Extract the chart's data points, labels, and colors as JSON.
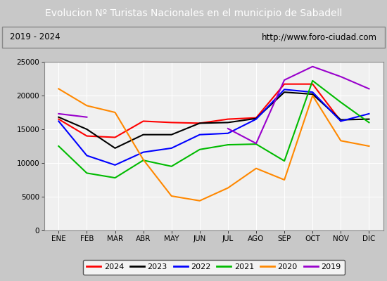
{
  "title": "Evolucion Nº Turistas Nacionales en el municipio de Sabadell",
  "subtitle_left": "2019 - 2024",
  "subtitle_right": "http://www.foro-ciudad.com",
  "title_bg_color": "#4d7ebf",
  "title_text_color": "#ffffff",
  "subtitle_bg_color": "#e8e8e8",
  "plot_bg_color": "#f0f0f0",
  "months": [
    "ENE",
    "FEB",
    "MAR",
    "ABR",
    "MAY",
    "JUN",
    "JUL",
    "AGO",
    "SEP",
    "OCT",
    "NOV",
    "DIC"
  ],
  "ylim": [
    0,
    25000
  ],
  "yticks": [
    0,
    5000,
    10000,
    15000,
    20000,
    25000
  ],
  "series": {
    "2024": {
      "color": "#ff0000",
      "data": [
        16500,
        14000,
        13800,
        16200,
        16000,
        15900,
        16500,
        16700,
        21700,
        21700,
        16200,
        null
      ]
    },
    "2023": {
      "color": "#000000",
      "data": [
        16800,
        15000,
        12200,
        14200,
        14200,
        15900,
        16000,
        16600,
        20500,
        20200,
        16400,
        16500
      ]
    },
    "2022": {
      "color": "#0000ff",
      "data": [
        16200,
        11100,
        9700,
        11600,
        12200,
        14200,
        14400,
        16500,
        20900,
        20500,
        16200,
        17300
      ]
    },
    "2021": {
      "color": "#00bb00",
      "data": [
        12500,
        8500,
        7800,
        10400,
        9500,
        12000,
        12700,
        12800,
        10300,
        22200,
        19000,
        16000
      ]
    },
    "2020": {
      "color": "#ff8800",
      "data": [
        21000,
        18500,
        17500,
        10500,
        5100,
        4400,
        6300,
        9200,
        7500,
        20000,
        13300,
        12500
      ]
    },
    "2019": {
      "color": "#9900cc",
      "data": [
        17300,
        16800,
        null,
        null,
        null,
        null,
        15100,
        12900,
        22300,
        24300,
        22800,
        21000
      ]
    }
  },
  "legend_order": [
    "2024",
    "2023",
    "2022",
    "2021",
    "2020",
    "2019"
  ]
}
